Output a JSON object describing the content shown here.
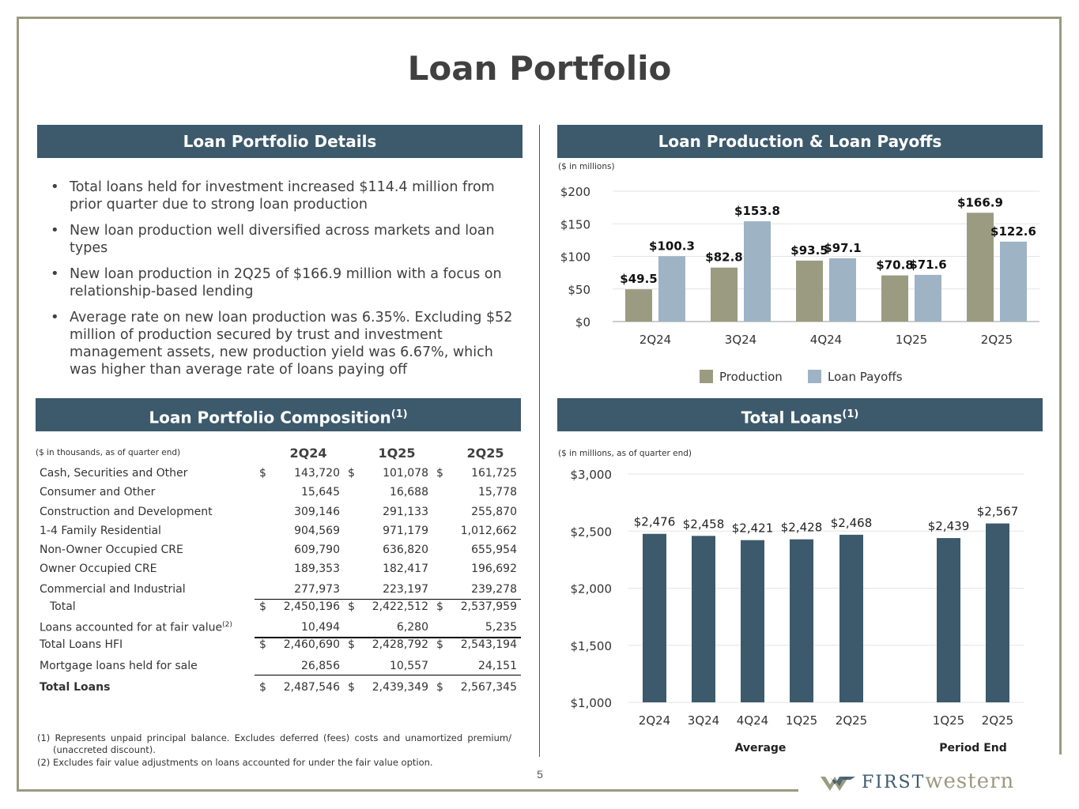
{
  "page": {
    "title": "Loan Portfolio",
    "page_number": "5"
  },
  "headers": {
    "details": "Loan Portfolio Details",
    "production": "Loan Production & Loan Payoffs",
    "composition": "Loan Portfolio Composition",
    "composition_sup": "(1)",
    "total_loans": "Total Loans",
    "total_loans_sup": "(1)"
  },
  "bullets": [
    "Total loans held for investment increased $114.4 million from prior quarter due to strong loan production",
    "New loan production well diversified across markets and loan types",
    "New loan production in 2Q25 of $166.9 million with a focus on relationship-based lending",
    "Average rate on new loan production was 6.35%. Excluding $52 million of production secured by trust and investment management assets, new production yield was 6.67%, which was higher than average rate of loans paying off"
  ],
  "production_note": "($ in millions)",
  "total_loans_note": "($ in millions, as of quarter end)",
  "table": {
    "note": "($ in thousands, as of quarter end)",
    "columns": [
      "2Q24",
      "1Q25",
      "2Q25"
    ],
    "currency_symbol": "$",
    "rows": [
      {
        "label": "Cash, Securities and Other",
        "values": [
          "143,720",
          "101,078",
          "161,725"
        ],
        "dollar": true
      },
      {
        "label": "Consumer and Other",
        "values": [
          "15,645",
          "16,688",
          "15,778"
        ]
      },
      {
        "label": "Construction and Development",
        "values": [
          "309,146",
          "291,133",
          "255,870"
        ]
      },
      {
        "label": "1-4 Family Residential",
        "values": [
          "904,569",
          "971,179",
          "1,012,662"
        ]
      },
      {
        "label": "Non-Owner Occupied CRE",
        "values": [
          "609,790",
          "636,820",
          "655,954"
        ]
      },
      {
        "label": "Owner Occupied CRE",
        "values": [
          "189,353",
          "182,417",
          "196,692"
        ]
      },
      {
        "label": "Commercial and Industrial",
        "values": [
          "277,973",
          "223,197",
          "239,278"
        ]
      },
      {
        "label": "Total",
        "values": [
          "2,450,196",
          "2,422,512",
          "2,537,959"
        ],
        "dollar": true,
        "indent": true
      },
      {
        "label": "Loans accounted for at fair value",
        "sup": "(2)",
        "values": [
          "10,494",
          "6,280",
          "5,235"
        ]
      },
      {
        "label": "Total Loans HFI",
        "values": [
          "2,460,690",
          "2,428,792",
          "2,543,194"
        ],
        "dollar": true
      },
      {
        "label": "Mortgage loans held for sale",
        "values": [
          "26,856",
          "10,557",
          "24,151"
        ]
      },
      {
        "label": "Total Loans",
        "values": [
          "2,487,546",
          "2,439,349",
          "2,567,345"
        ],
        "dollar": true,
        "bold": true
      }
    ]
  },
  "footnotes": [
    "(1) Represents unpaid principal balance. Excludes deferred (fees) costs and unamortized premium/ (unaccreted discount).",
    "(2)  Excludes fair value adjustments on loans accounted for under the fair value option."
  ],
  "logo": {
    "first": "FIRST",
    "western": "western"
  },
  "colors": {
    "header": "#3d5a6c",
    "production": "#9a9b80",
    "payoffs": "#9eb3c4",
    "total": "#3d5a6c",
    "frame": "#9a9b80"
  },
  "chart_data": [
    {
      "type": "bar",
      "categories": [
        "2Q24",
        "3Q24",
        "4Q24",
        "1Q25",
        "2Q25"
      ],
      "series": [
        {
          "name": "Production",
          "values": [
            49.5,
            82.8,
            93.5,
            70.8,
            166.9
          ],
          "labels": [
            "$49.5",
            "$82.8",
            "$93.5",
            "$70.8",
            "$166.9"
          ]
        },
        {
          "name": "Loan Payoffs",
          "values": [
            100.3,
            153.8,
            97.1,
            71.6,
            122.6
          ],
          "labels": [
            "$100.3",
            "$153.8",
            "$97.1",
            "$71.6",
            "$122.6"
          ]
        }
      ],
      "ylim": [
        0,
        200
      ],
      "yticks": [
        "$0",
        "$50",
        "$100",
        "$150",
        "$200"
      ],
      "legend": "bottom"
    },
    {
      "type": "bar",
      "categories": [
        "2Q24",
        "3Q24",
        "4Q24",
        "1Q25",
        "2Q25",
        "1Q25",
        "2Q25"
      ],
      "groups": [
        "Average",
        "Average",
        "Average",
        "Average",
        "Average",
        "Period End",
        "Period End"
      ],
      "group_labels": [
        "Average",
        "Period End"
      ],
      "values": [
        2476,
        2458,
        2421,
        2428,
        2468,
        2439,
        2567
      ],
      "labels": [
        "$2,476",
        "$2,458",
        "$2,421",
        "$2,428",
        "$2,468",
        "$2,439",
        "$2,567"
      ],
      "ylim": [
        1000,
        3000
      ],
      "yticks": [
        "$1,000",
        "$1,500",
        "$2,000",
        "$2,500",
        "$3,000"
      ]
    }
  ]
}
